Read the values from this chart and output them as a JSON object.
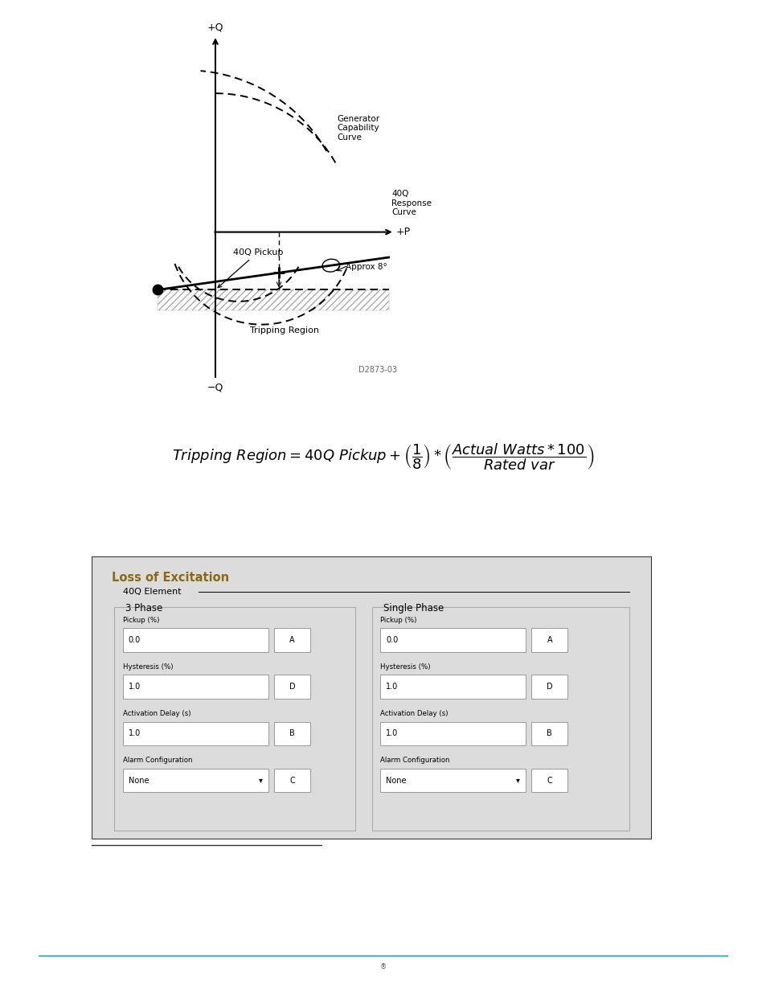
{
  "bg_color": "#ffffff",
  "diagram": {
    "labels": {
      "plus_q": "+Q",
      "minus_q": "−Q",
      "plus_p": "+P",
      "gen_cap": "Generator\nCapability\nCurve",
      "response": "40Q\nResponse\nCurve",
      "pickup": "40Q Pickup",
      "approx": "Approx 8°",
      "tripping": "Tripping Region",
      "diagram_id": "D2873-03"
    }
  },
  "panel": {
    "title": "Loss of Excitation",
    "title_color": "#8B6914",
    "bg_color": "#e0e0e0",
    "border_color": "#222222",
    "element_group": "40Q Element",
    "col1_title": "3 Phase",
    "col2_title": "Single Phase",
    "fields": [
      {
        "label": "Pickup (%)",
        "value": "0.0",
        "button": "A"
      },
      {
        "label": "Hysteresis (%)",
        "value": "1.0",
        "button": "D"
      },
      {
        "label": "Activation Delay (s)",
        "value": "1.0",
        "button": "B"
      },
      {
        "label": "Alarm Configuration",
        "value": "None",
        "button": "C",
        "type": "dropdown"
      }
    ]
  },
  "footer_line_color": "#4db8d4",
  "underline_color": "#333333"
}
